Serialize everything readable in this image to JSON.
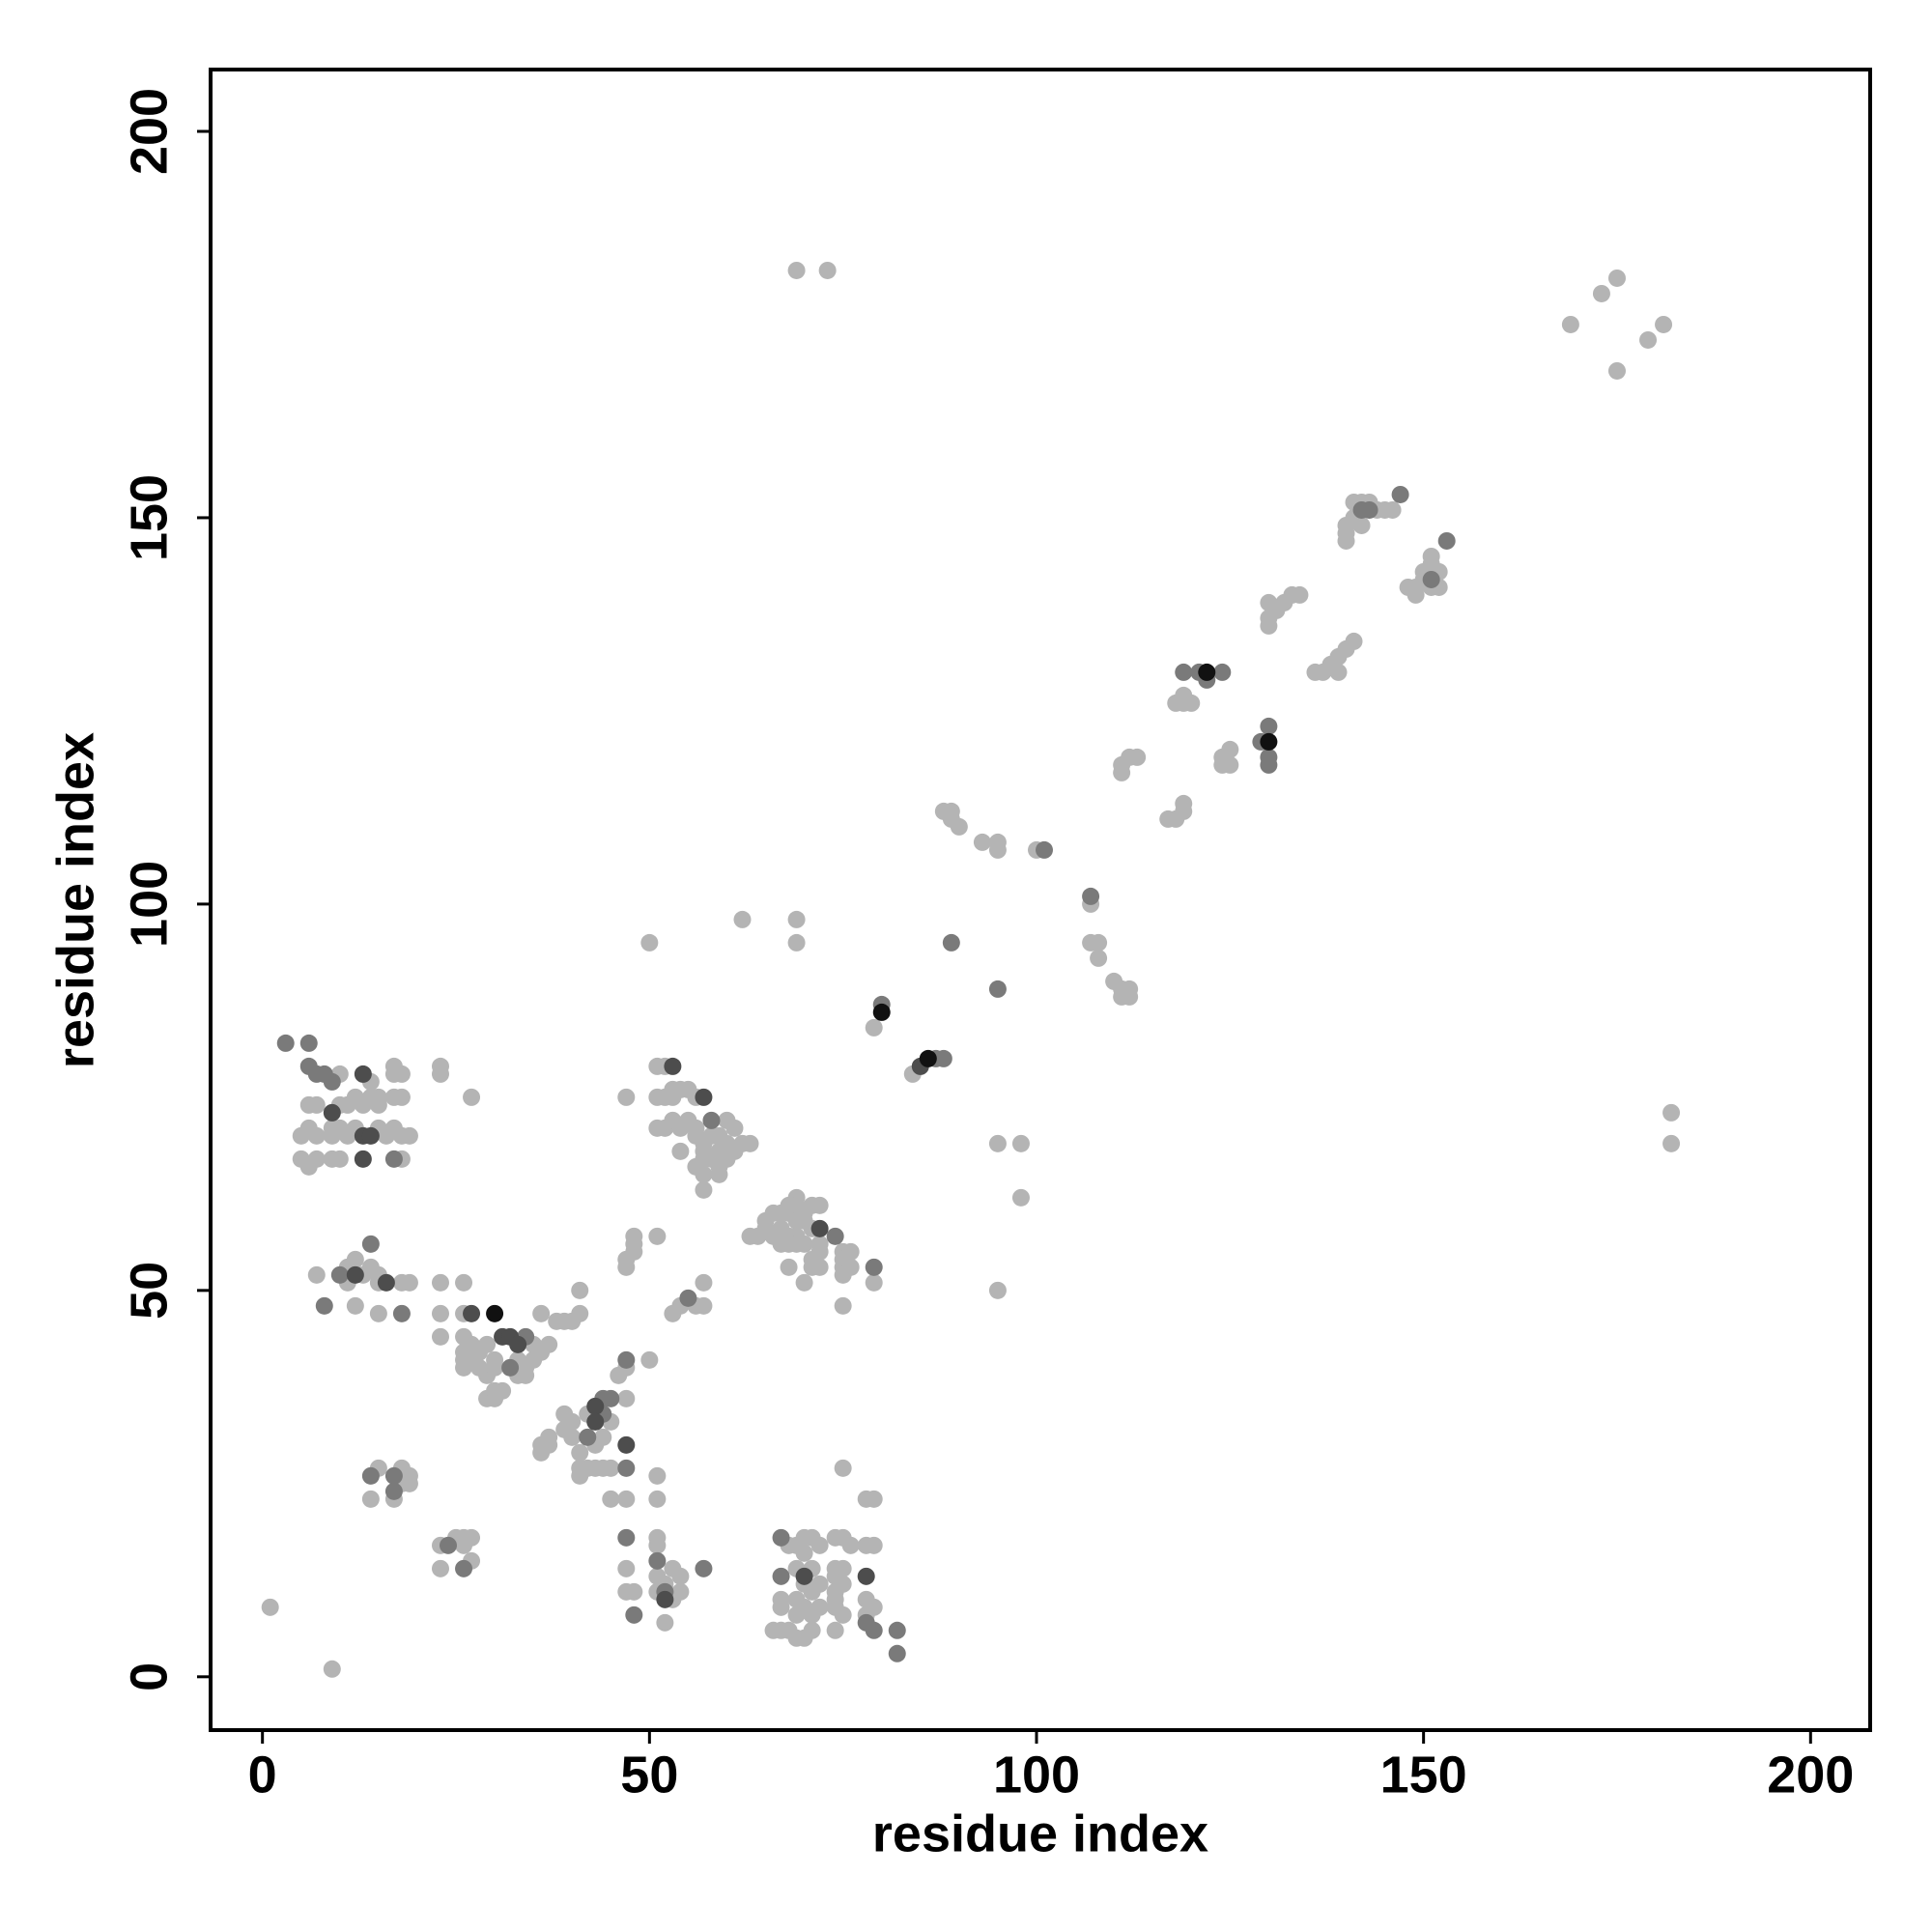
{
  "chart_data": {
    "type": "scatter",
    "x_label": "residue index",
    "y_label": "residue index",
    "xlim": [
      -6.7,
      207.7
    ],
    "ylim": [
      -6.9,
      208
    ],
    "xticks": [
      0,
      50,
      100,
      150,
      200
    ],
    "yticks": [
      0,
      50,
      100,
      150,
      200
    ],
    "series": [
      {
        "color": "#b4b4b4",
        "x": [
          69,
          73,
          169,
          173,
          175,
          175,
          179,
          181,
          182,
          182,
          1,
          9,
          95,
          95,
          98,
          98,
          50,
          62,
          69,
          69,
          79,
          84,
          88,
          89,
          89,
          90,
          93,
          95,
          95,
          100,
          107,
          107,
          108,
          108,
          110,
          111,
          112,
          111,
          112,
          117,
          118,
          119,
          119,
          111,
          111,
          112,
          113,
          118,
          119,
          120,
          119,
          124,
          125,
          124,
          125,
          130,
          130,
          131,
          130,
          132,
          133,
          134,
          136,
          137,
          138,
          139,
          140,
          139,
          141,
          140,
          140,
          141,
          141,
          142,
          143,
          144,
          145,
          146,
          140,
          142,
          148,
          149,
          149,
          150,
          150,
          151,
          151,
          152,
          152,
          151,
          10,
          14,
          17,
          17,
          18,
          6,
          7,
          10,
          11,
          12,
          13,
          14,
          15,
          15,
          17,
          18,
          5,
          6,
          7,
          9,
          9,
          10,
          11,
          12,
          15,
          16,
          17,
          18,
          19,
          5,
          6,
          7,
          9,
          10,
          18,
          23,
          23,
          27,
          7,
          11,
          11,
          12,
          12,
          13,
          14,
          15,
          15,
          15,
          18,
          19,
          23,
          23,
          23,
          26,
          26,
          26,
          26,
          26,
          26,
          27,
          27,
          27,
          28,
          28,
          29,
          29,
          30,
          30,
          30,
          31,
          33,
          34,
          35,
          35,
          36,
          37,
          33,
          34,
          36,
          38,
          39,
          40,
          41,
          41,
          29,
          30,
          36,
          36,
          37,
          37,
          39,
          39,
          40,
          40,
          41,
          41,
          41,
          42,
          42,
          43,
          43,
          44,
          44,
          45,
          45,
          45,
          46,
          47,
          47,
          47,
          47,
          47,
          48,
          50,
          15,
          14,
          17,
          18,
          18,
          19,
          19,
          23,
          23,
          25,
          26,
          27,
          26,
          27,
          51,
          51,
          51,
          51,
          51,
          51,
          52,
          53,
          53,
          54,
          54,
          52,
          66,
          67,
          67,
          67,
          68,
          68,
          69,
          69,
          69,
          69,
          69,
          70,
          70,
          70,
          70,
          70,
          71,
          71,
          71,
          71,
          71,
          72,
          72,
          72,
          74,
          74,
          74,
          74,
          74,
          74,
          74,
          75,
          75,
          75,
          75,
          76,
          78,
          78,
          78,
          78,
          79,
          79,
          79,
          75,
          47,
          47,
          48,
          48,
          48,
          51,
          51,
          52,
          53,
          54,
          55,
          56,
          47,
          51,
          52,
          53,
          51,
          52,
          53,
          54,
          55,
          56,
          56,
          57,
          57,
          57,
          56,
          57,
          57,
          58,
          58,
          59,
          59,
          59,
          60,
          60,
          60,
          61,
          61,
          62,
          63,
          59,
          54,
          53,
          54,
          56,
          57,
          57,
          63,
          64,
          65,
          65,
          66,
          66,
          67,
          67,
          67,
          68,
          68,
          68,
          68,
          68,
          69,
          69,
          69,
          69,
          69,
          70,
          70,
          70,
          70,
          71,
          71,
          71,
          71,
          72,
          72,
          72,
          72,
          75,
          75,
          75,
          75,
          75,
          76,
          76,
          79
        ],
        "y": [
          182,
          182,
          175,
          179,
          181,
          169,
          173,
          175,
          73,
          69,
          9,
          1,
          50,
          69,
          69,
          62,
          95,
          98,
          98,
          95,
          84,
          78,
          112,
          112,
          111,
          110,
          108,
          108,
          107,
          107,
          100,
          95,
          95,
          93,
          90,
          89,
          89,
          88,
          88,
          111,
          111,
          112,
          113,
          117,
          118,
          119,
          119,
          126,
          126,
          126,
          127,
          119,
          120,
          118,
          118,
          136,
          137,
          138,
          139,
          139,
          140,
          140,
          130,
          130,
          131,
          132,
          133,
          130,
          134,
          148,
          149,
          150,
          152,
          152,
          152,
          151,
          151,
          151,
          147,
          149,
          141,
          141,
          140,
          142,
          143,
          141,
          144,
          141,
          143,
          145,
          78,
          77,
          79,
          78,
          78,
          74,
          74,
          74,
          74,
          75,
          74,
          75,
          74,
          75,
          75,
          75,
          70,
          71,
          70,
          70,
          71,
          71,
          70,
          71,
          71,
          70,
          71,
          70,
          70,
          67,
          66,
          67,
          67,
          67,
          67,
          79,
          78,
          75,
          52,
          53,
          51,
          54,
          48,
          52,
          53,
          52,
          51,
          47,
          51,
          51,
          51,
          47,
          44,
          51,
          47,
          44,
          42,
          41,
          40,
          43,
          42,
          41,
          40,
          42,
          39,
          43,
          41,
          40,
          36,
          37,
          41,
          40,
          41,
          43,
          42,
          43,
          39,
          39,
          47,
          46,
          46,
          46,
          47,
          50,
          36,
          37,
          29,
          30,
          30,
          31,
          32,
          34,
          33,
          31,
          29,
          27,
          26,
          27,
          34,
          30,
          27,
          31,
          27,
          33,
          27,
          23,
          39,
          40,
          36,
          23,
          14,
          11,
          11,
          41,
          27,
          23,
          23,
          25,
          27,
          26,
          25,
          17,
          14,
          18,
          18,
          15,
          17,
          18,
          26,
          23,
          18,
          17,
          13,
          11,
          7,
          14,
          10,
          13,
          11,
          12,
          6,
          6,
          10,
          9,
          17,
          6,
          5,
          8,
          10,
          14,
          17,
          18,
          16,
          12,
          9,
          5,
          18,
          14,
          11,
          8,
          6,
          17,
          12,
          9,
          18,
          14,
          13,
          11,
          10,
          9,
          6,
          18,
          14,
          12,
          8,
          17,
          17,
          10,
          8,
          23,
          23,
          17,
          9,
          27,
          53,
          54,
          55,
          56,
          57,
          57,
          79,
          79,
          76,
          76,
          76,
          75,
          75,
          75,
          75,
          75,
          71,
          71,
          72,
          71,
          72,
          71,
          70,
          69,
          68,
          67,
          66,
          65,
          63,
          67,
          70,
          70,
          68,
          66,
          72,
          69,
          67,
          68,
          71,
          69,
          69,
          65,
          68,
          47,
          48,
          48,
          48,
          51,
          57,
          57,
          58,
          59,
          60,
          57,
          60,
          58,
          56,
          61,
          60,
          57,
          56,
          53,
          62,
          61,
          59,
          57,
          56,
          60,
          59,
          56,
          51,
          61,
          58,
          54,
          53,
          61,
          56,
          53,
          55,
          55,
          54,
          53,
          52,
          48,
          55,
          53,
          51
        ]
      },
      {
        "color": "#7a7a7a",
        "x": [
          80,
          87,
          88,
          89,
          95,
          101,
          107,
          119,
          121,
          122,
          124,
          129,
          130,
          130,
          130,
          142,
          143,
          147,
          153,
          151,
          3,
          6,
          6,
          7,
          8,
          9,
          8,
          10,
          14,
          18,
          17,
          32,
          34,
          42,
          44,
          44,
          45,
          47,
          47,
          47,
          48,
          14,
          17,
          17,
          24,
          26,
          51,
          52,
          57,
          67,
          67,
          78,
          79,
          82,
          82,
          58,
          55,
          74,
          79
        ],
        "y": [
          87,
          80,
          80,
          95,
          89,
          107,
          101,
          130,
          130,
          129,
          130,
          121,
          123,
          119,
          118,
          151,
          151,
          153,
          147,
          142,
          82,
          82,
          79,
          78,
          78,
          77,
          48,
          52,
          56,
          47,
          67,
          40,
          44,
          31,
          36,
          34,
          36,
          41,
          27,
          18,
          8,
          26,
          26,
          24,
          17,
          14,
          15,
          11,
          14,
          13,
          18,
          7,
          6,
          6,
          3,
          72,
          49,
          57,
          53
        ]
      },
      {
        "color": "#4d4d4d",
        "x": [
          13,
          9,
          13,
          14,
          13,
          12,
          16,
          27,
          31,
          32,
          33,
          43,
          43,
          47,
          52,
          70,
          78,
          72,
          53,
          57,
          85
        ],
        "y": [
          78,
          73,
          70,
          70,
          67,
          52,
          51,
          47,
          44,
          44,
          43,
          35,
          33,
          30,
          10,
          13,
          13,
          58,
          79,
          75,
          79
        ]
      },
      {
        "color": "#111111",
        "x": [
          80,
          86,
          122,
          130,
          30
        ],
        "y": [
          86,
          80,
          130,
          121,
          47
        ]
      }
    ]
  }
}
